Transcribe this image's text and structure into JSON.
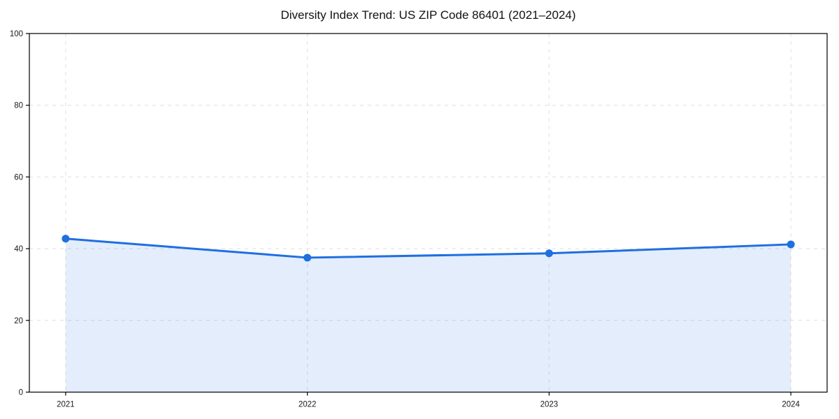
{
  "chart_data": {
    "type": "area",
    "title": "Diversity Index Trend: US ZIP Code 86401 (2021–2024)",
    "x": [
      2021,
      2022,
      2023,
      2024
    ],
    "categories": [
      "2021",
      "2022",
      "2023",
      "2024"
    ],
    "series": [
      {
        "name": "Diversity Index",
        "values": [
          42.8,
          37.5,
          38.7,
          41.2
        ]
      }
    ],
    "xlabel": "",
    "ylabel": "",
    "xlim": [
      2020.85,
      2024.15
    ],
    "ylim": [
      0,
      100
    ],
    "y_ticks": [
      0,
      20,
      40,
      60,
      80,
      100
    ],
    "grid": "dashed-both-axes",
    "legend": "none",
    "colors": {
      "line": "#1f6fe0",
      "marker": "#1f6fe0",
      "fill": "#1f6fe0",
      "fill_opacity": 0.12,
      "gridline": "#dedede",
      "spine": "#000000",
      "tick_text": "#1a1a1a",
      "background": "#ffffff"
    }
  }
}
